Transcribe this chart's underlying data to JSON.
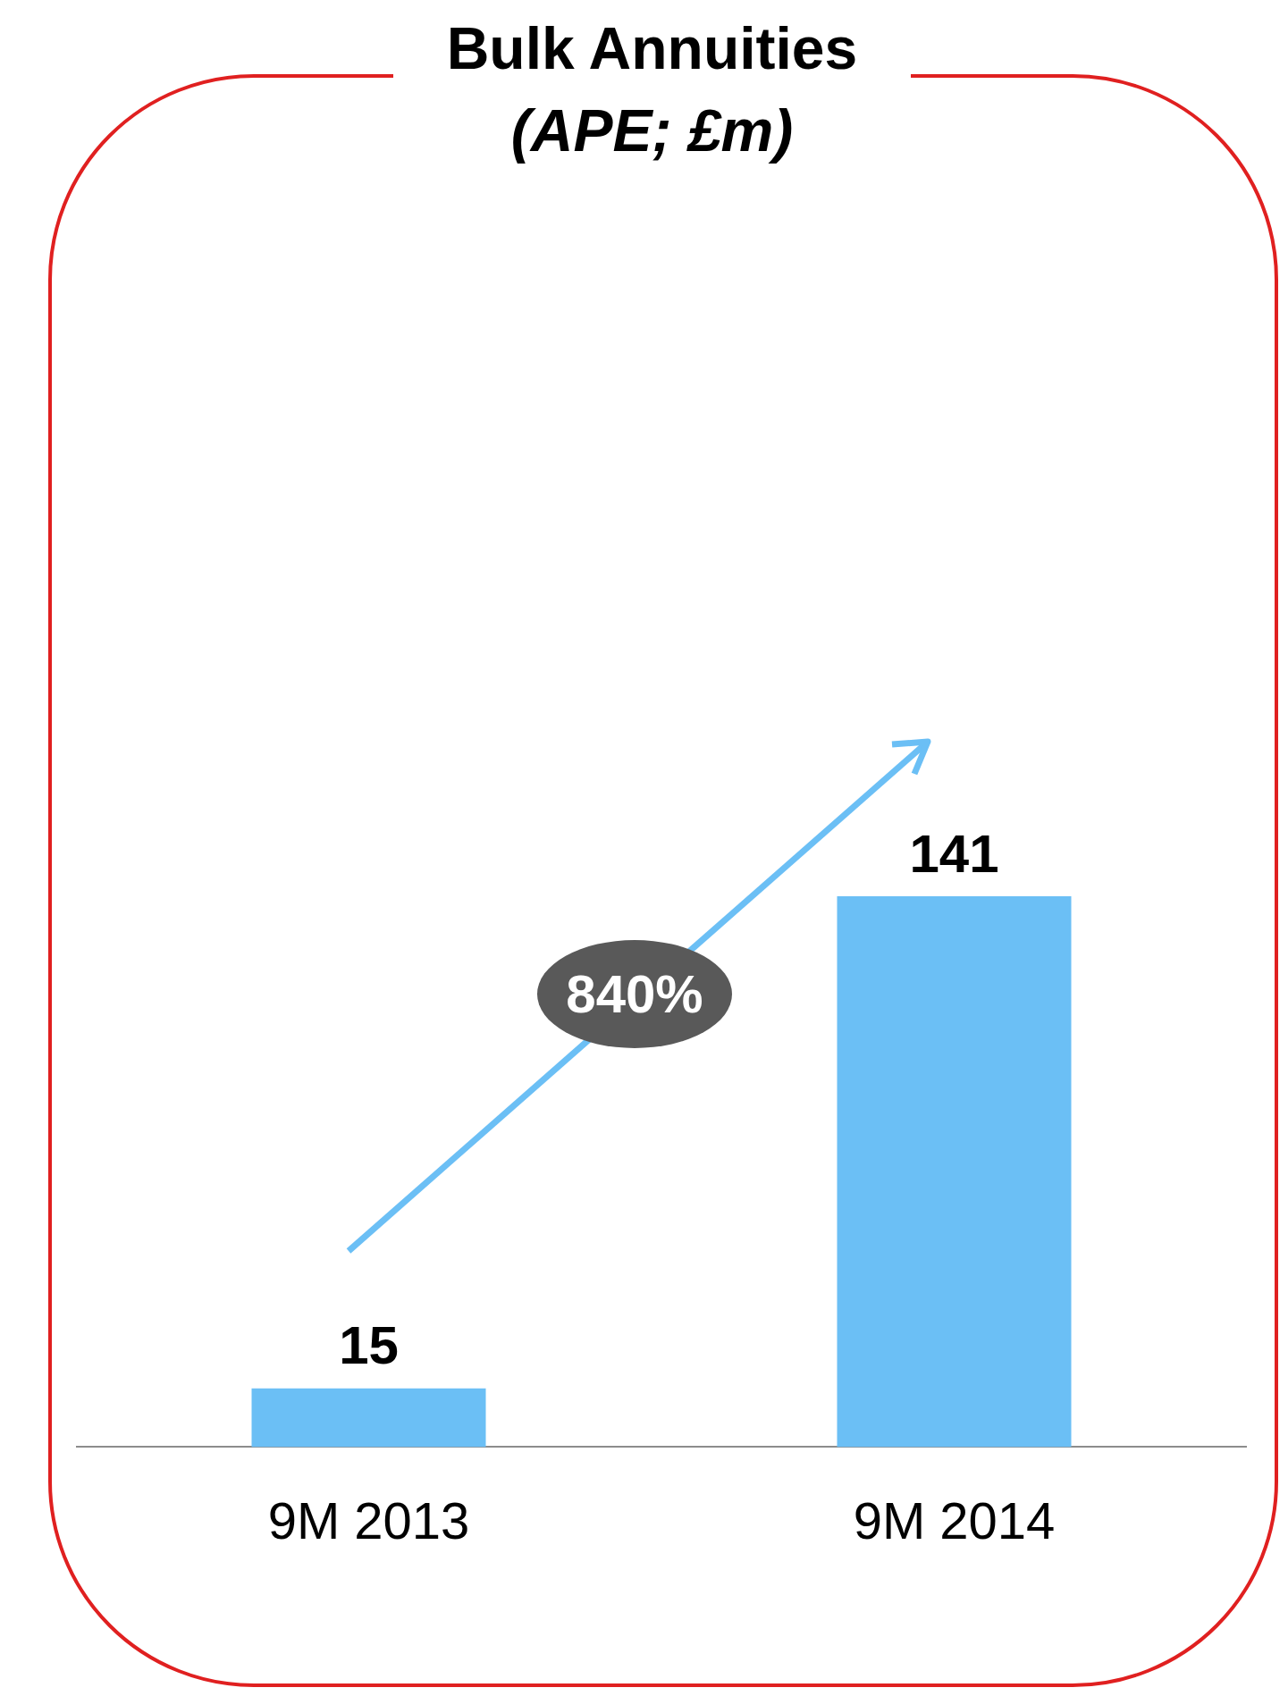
{
  "chart_data": {
    "type": "bar",
    "title": "Bulk Annuities",
    "subtitle": "(APE; £m)",
    "categories": [
      "9M 2013",
      "9M 2014"
    ],
    "values": [
      15,
      141
    ],
    "color": "#6bbff5",
    "data_labels": true,
    "annotations": [
      "840%"
    ]
  }
}
